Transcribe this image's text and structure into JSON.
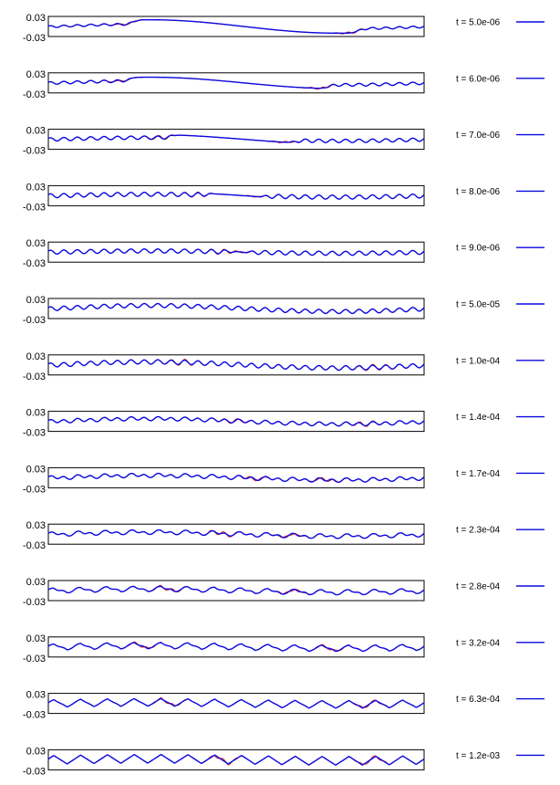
{
  "chart_data": {
    "type": "line",
    "layout": "stacked-panels",
    "ylim": [
      -0.03,
      0.03
    ],
    "yticks": [
      "0.03",
      "-0.03"
    ],
    "xlabel": "",
    "ylabel": "",
    "grid": false,
    "legend_placement": "right",
    "colors": {
      "numeric": "#0a0adf",
      "reference": "#e0201a",
      "frame": "#000000"
    },
    "panels": [
      {
        "legend": "t = 5.0e-06",
        "mode": "front",
        "front": [
          0.2,
          0.8
        ],
        "fine_amp": 0.003,
        "long_amp": 0.02,
        "red_dev": 0.003
      },
      {
        "legend": "t = 6.0e-06",
        "mode": "front",
        "front": [
          0.19,
          0.72
        ],
        "fine_amp": 0.004,
        "long_amp": 0.017,
        "red_dev": 0.003
      },
      {
        "legend": "t = 7.0e-06",
        "mode": "front",
        "front": [
          0.3,
          0.63
        ],
        "fine_amp": 0.005,
        "long_amp": 0.014,
        "red_dev": 0.003
      },
      {
        "legend": "t = 8.0e-06",
        "mode": "front",
        "front": [
          0.4,
          0.55
        ],
        "fine_amp": 0.006,
        "long_amp": 0.012,
        "red_dev": 0.002
      },
      {
        "legend": "t = 9.0e-06",
        "mode": "front",
        "front": [
          0.46,
          0.51
        ],
        "fine_amp": 0.006,
        "long_amp": 0.01,
        "red_dev": 0.002
      },
      {
        "legend": "t = 5.0e-05",
        "mode": "settled",
        "fine_amp": 0.006,
        "long_amp": 0.009,
        "blend": 0.0,
        "red_dev": 0.0
      },
      {
        "legend": "t = 1.0e-04",
        "mode": "settled",
        "fine_amp": 0.007,
        "long_amp": 0.009,
        "blend": 0.1,
        "red_dev": 0.003
      },
      {
        "legend": "t = 1.4e-04",
        "mode": "settled",
        "fine_amp": 0.007,
        "long_amp": 0.008,
        "blend": 0.3,
        "red_dev": 0.003
      },
      {
        "legend": "t = 1.7e-04",
        "mode": "settled",
        "fine_amp": 0.008,
        "long_amp": 0.007,
        "blend": 0.45,
        "red_dev": 0.004
      },
      {
        "legend": "t = 2.3e-04",
        "mode": "settled",
        "fine_amp": 0.009,
        "long_amp": 0.006,
        "blend": 0.6,
        "red_dev": 0.004
      },
      {
        "legend": "t = 2.8e-04",
        "mode": "settled",
        "fine_amp": 0.01,
        "long_amp": 0.005,
        "blend": 0.75,
        "red_dev": 0.004
      },
      {
        "legend": "t = 3.2e-04",
        "mode": "settled",
        "fine_amp": 0.011,
        "long_amp": 0.004,
        "blend": 0.85,
        "red_dev": 0.004
      },
      {
        "legend": "t = 6.3e-04",
        "mode": "settled",
        "fine_amp": 0.012,
        "long_amp": 0.003,
        "blend": 0.95,
        "red_dev": 0.004
      },
      {
        "legend": "t = 1.2e-03",
        "mode": "settled",
        "fine_amp": 0.013,
        "long_amp": 0.003,
        "blend": 1.0,
        "red_dev": 0.005
      }
    ]
  }
}
